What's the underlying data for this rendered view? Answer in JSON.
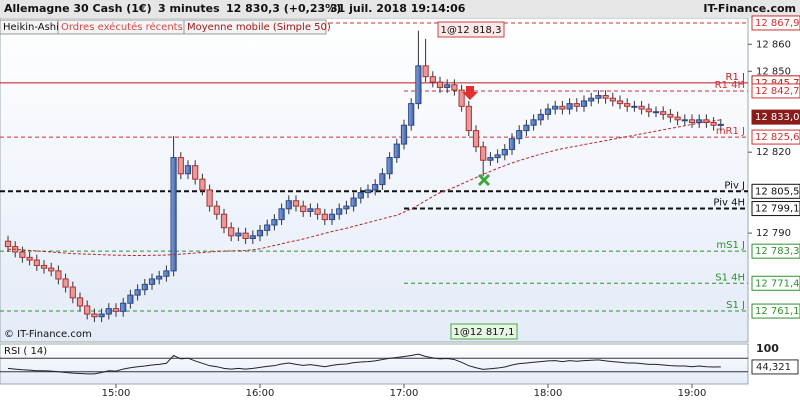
{
  "header": {
    "title": "Allemagne 30 Cash (1€)",
    "interval": "3 minutes",
    "quote": "12 830,3 (+0,23%)",
    "datetime": "31 juil. 2018 19:14:06",
    "brand": "IT-Finance.com",
    "copyright": "© IT-Finance.com"
  },
  "chart_data": {
    "type": "candlestick",
    "categories": [
      null,
      null,
      null,
      null,
      null,
      null,
      null,
      null,
      null,
      null,
      null,
      null,
      null,
      null,
      null,
      "15:00",
      null,
      null,
      null,
      null,
      null,
      null,
      null,
      null,
      null,
      null,
      null,
      null,
      null,
      null,
      null,
      null,
      null,
      null,
      null,
      "16:00",
      null,
      null,
      null,
      null,
      null,
      null,
      null,
      null,
      null,
      null,
      null,
      null,
      null,
      null,
      null,
      null,
      null,
      null,
      null,
      "17:00",
      null,
      null,
      null,
      null,
      null,
      null,
      null,
      null,
      null,
      null,
      null,
      null,
      null,
      null,
      null,
      null,
      null,
      null,
      null,
      "18:00",
      null,
      null,
      null,
      null,
      null,
      null,
      null,
      null,
      null,
      null,
      null,
      null,
      null,
      null,
      null,
      null,
      null,
      null,
      null,
      "19:00",
      null,
      null,
      null,
      null
    ],
    "series": [
      {
        "name": "Heikin-Ashi",
        "up_color": "#4f72b8",
        "down_color": "#e89a9a",
        "open": [
          12787,
          12785,
          12783,
          12781,
          12780,
          12778,
          12777,
          12776,
          12773,
          12770,
          12766,
          12763,
          12760,
          12759,
          12760,
          12762,
          12761,
          12764,
          12767,
          12769,
          12771,
          12773,
          12774,
          12776,
          12818,
          12812,
          12815,
          12810,
          12806,
          12800,
          12797,
          12792,
          12789,
          12790,
          12788,
          12789,
          12791,
          12793,
          12795,
          12799,
          12802,
          12800,
          12798,
          12799,
          12797,
          12795,
          12797,
          12799,
          12800,
          12803,
          12805,
          12806,
          12808,
          12812,
          12818,
          12823,
          12830,
          12838,
          12852,
          12848,
          12846,
          12844,
          12845,
          12843,
          12837,
          12828,
          12822,
          12817,
          12818,
          12819,
          12821,
          12825,
          12828,
          12830,
          12832,
          12834,
          12836,
          12837,
          12836,
          12838,
          12837,
          12839,
          12840,
          12841,
          12840,
          12839,
          12838,
          12837,
          12837,
          12836,
          12835,
          12835,
          12834,
          12833,
          12832,
          12832,
          12831,
          12832,
          12831,
          12830
        ],
        "high": [
          12789,
          12787,
          12785,
          12783,
          12782,
          12780,
          12779,
          12778,
          12775,
          12772,
          12768,
          12765,
          12762,
          12762,
          12764,
          12764,
          12766,
          12769,
          12771,
          12773,
          12775,
          12776,
          12778,
          12826,
          12820,
          12817,
          12817,
          12812,
          12808,
          12802,
          12799,
          12794,
          12792,
          12792,
          12791,
          12793,
          12795,
          12797,
          12801,
          12804,
          12804,
          12802,
          12801,
          12801,
          12799,
          12799,
          12801,
          12802,
          12805,
          12807,
          12808,
          12810,
          12814,
          12820,
          12825,
          12832,
          12840,
          12865,
          12862,
          12850,
          12848,
          12847,
          12847,
          12845,
          12839,
          12830,
          12824,
          12820,
          12821,
          12823,
          12827,
          12830,
          12832,
          12834,
          12836,
          12838,
          12839,
          12839,
          12840,
          12840,
          12841,
          12842,
          12843,
          12843,
          12842,
          12841,
          12840,
          12839,
          12839,
          12838,
          12837,
          12837,
          12836,
          12835,
          12834,
          12834,
          12834,
          12834,
          12833,
          12832.3
        ],
        "low": [
          12783,
          12781,
          12779,
          12778,
          12776,
          12775,
          12774,
          12771,
          12768,
          12764,
          12761,
          12758,
          12757,
          12757,
          12758,
          12759,
          12759,
          12762,
          12765,
          12767,
          12769,
          12771,
          12772,
          12774,
          12810,
          12810,
          12808,
          12804,
          12798,
          12795,
          12790,
          12787,
          12787,
          12786,
          12786,
          12787,
          12789,
          12791,
          12793,
          12797,
          12798,
          12796,
          12796,
          12795,
          12793,
          12793,
          12795,
          12797,
          12798,
          12801,
          12803,
          12804,
          12806,
          12810,
          12816,
          12821,
          12828,
          12836,
          12846,
          12844,
          12842,
          12842,
          12841,
          12835,
          12826,
          12820,
          12811,
          12815,
          12816,
          12817,
          12819,
          12823,
          12826,
          12828,
          12830,
          12832,
          12834,
          12834,
          12834,
          12835,
          12835,
          12837,
          12838,
          12838,
          12837,
          12836,
          12835,
          12835,
          12834,
          12833,
          12833,
          12832,
          12831,
          12830,
          12830,
          12829,
          12829,
          12829,
          12828,
          12828
        ],
        "close": [
          12785,
          12783,
          12781,
          12780,
          12778,
          12777,
          12776,
          12773,
          12770,
          12766,
          12763,
          12760,
          12759,
          12760,
          12762,
          12761,
          12764,
          12767,
          12769,
          12771,
          12773,
          12774,
          12776,
          12818,
          12812,
          12815,
          12810,
          12806,
          12800,
          12797,
          12792,
          12789,
          12790,
          12788,
          12789,
          12791,
          12793,
          12795,
          12799,
          12802,
          12800,
          12798,
          12799,
          12797,
          12795,
          12797,
          12799,
          12800,
          12803,
          12805,
          12806,
          12808,
          12812,
          12818,
          12823,
          12830,
          12838,
          12852,
          12848,
          12846,
          12844,
          12845,
          12843,
          12837,
          12828,
          12822,
          12817,
          12818,
          12819,
          12821,
          12825,
          12828,
          12830,
          12832,
          12834,
          12836,
          12837,
          12836,
          12838,
          12837,
          12839,
          12840,
          12841,
          12840,
          12839,
          12838,
          12837,
          12837,
          12836,
          12835,
          12835,
          12834,
          12833,
          12832,
          12832,
          12831,
          12832,
          12831,
          12830,
          12830.3
        ]
      },
      {
        "name": "Moyenne mobile (Simple 50)",
        "color": "#b22a2a",
        "values": [
          12784,
          12784,
          12783.8,
          12783.6,
          12783.4,
          12783.2,
          12783,
          12782.8,
          12782.6,
          12782.4,
          12782.3,
          12782.2,
          12782.1,
          12782,
          12781.9,
          12781.8,
          12781.8,
          12781.7,
          12781.7,
          12781.7,
          12781.8,
          12781.8,
          12781.9,
          12782,
          12782.2,
          12782.4,
          12782.6,
          12782.8,
          12783,
          12783.2,
          12783.3,
          12783.4,
          12783.5,
          12783.6,
          12783.8,
          12784.2,
          12784.8,
          12785.4,
          12786,
          12786.7,
          12787.2,
          12787.8,
          12788.5,
          12789.2,
          12789.9,
          12790.6,
          12791.2,
          12791.8,
          12792.5,
          12793.2,
          12793.9,
          12794.6,
          12795.3,
          12796,
          12796.6,
          12797.8,
          12799,
          12800.4,
          12802,
          12803.6,
          12805,
          12805.9,
          12807,
          12808.2,
          12809.4,
          12810.6,
          12811.8,
          12812.9,
          12814,
          12815,
          12816,
          12816.9,
          12817.7,
          12818.5,
          12819.3,
          12820,
          12820.7,
          12821.3,
          12821.8,
          12822.3,
          12822.8,
          12823.3,
          12823.8,
          12824.3,
          12824.8,
          12825.3,
          12825.8,
          12826.3,
          12826.8,
          12827.3,
          12827.8,
          12828.3,
          12828.8,
          12829.3,
          12829.8,
          12830.3,
          12830.8,
          12831.2,
          12831.6,
          12832
        ]
      }
    ],
    "orders": {
      "name": "Ordres exécutés récents",
      "labels": [
        "1@12 818,3",
        "1@12 817,1"
      ]
    },
    "ylim": [
      12750,
      12869
    ],
    "yticks": [
      {
        "value": 12790,
        "label": "12 790"
      },
      {
        "value": 12820,
        "label": "12 820"
      },
      {
        "value": 12850,
        "label": "12 850"
      },
      {
        "value": 12860,
        "label": "12 860"
      }
    ],
    "levels": [
      {
        "value": 12867.9,
        "value_label": "12 867,9",
        "color": "#d03030",
        "dash": true
      },
      {
        "label": "R1 J",
        "value": 12845.7,
        "value_label": "12 845,7",
        "color": "#c01818",
        "dash": false
      },
      {
        "label": "R1 4H",
        "value": 12842.7,
        "value_label": "12 842,7",
        "color": "#d03030",
        "dash": true,
        "partial": true
      },
      {
        "value": 12833.0,
        "value_label": "12 833,0",
        "color": "#8b1a1a",
        "filled": true
      },
      {
        "label": "mR1 J",
        "value": 12825.6,
        "value_label": "12 825,6",
        "color": "#d03030",
        "dash": true
      },
      {
        "label": "Piv J",
        "value": 12805.5,
        "value_label": "12 805,5",
        "color": "#111111",
        "dash": true,
        "bold": true
      },
      {
        "label": "Piv 4H",
        "value": 12799.1,
        "value_label": "12 799,1",
        "color": "#111111",
        "dash": true,
        "bold": true,
        "partial": true
      },
      {
        "label": "mS1 J",
        "value": 12783.3,
        "value_label": "12 783,3",
        "color": "#2f8f2f",
        "dash": true
      },
      {
        "label": "S1 4H",
        "value": 12771.4,
        "value_label": "12 771,4",
        "color": "#2f8f2f",
        "dash": true,
        "partial": true
      },
      {
        "label": "S1 J",
        "value": 12761.1,
        "value_label": "12 761,1",
        "color": "#2f8f2f",
        "dash": true
      }
    ],
    "rsi": {
      "title": "RSI ( 14)",
      "color": "#222222",
      "ylim": [
        0,
        100
      ],
      "yticks": [
        100
      ],
      "levels": [
        70,
        30
      ],
      "value_label": "44,321",
      "values": [
        40,
        38,
        36,
        35,
        33,
        33,
        32,
        30,
        28,
        26,
        25,
        24,
        24,
        28,
        33,
        32,
        38,
        42,
        45,
        47,
        50,
        52,
        55,
        78,
        68,
        70,
        62,
        55,
        48,
        45,
        40,
        38,
        40,
        38,
        40,
        43,
        46,
        48,
        53,
        56,
        52,
        49,
        51,
        48,
        45,
        49,
        52,
        53,
        57,
        59,
        60,
        62,
        66,
        70,
        72,
        75,
        78,
        82,
        75,
        71,
        68,
        69,
        66,
        58,
        48,
        42,
        37,
        39,
        41,
        44,
        50,
        54,
        56,
        58,
        60,
        62,
        63,
        60,
        63,
        61,
        63,
        64,
        65,
        62,
        60,
        58,
        56,
        56,
        54,
        52,
        52,
        50,
        48,
        47,
        47,
        45,
        47,
        45,
        44,
        44.321
      ]
    }
  }
}
